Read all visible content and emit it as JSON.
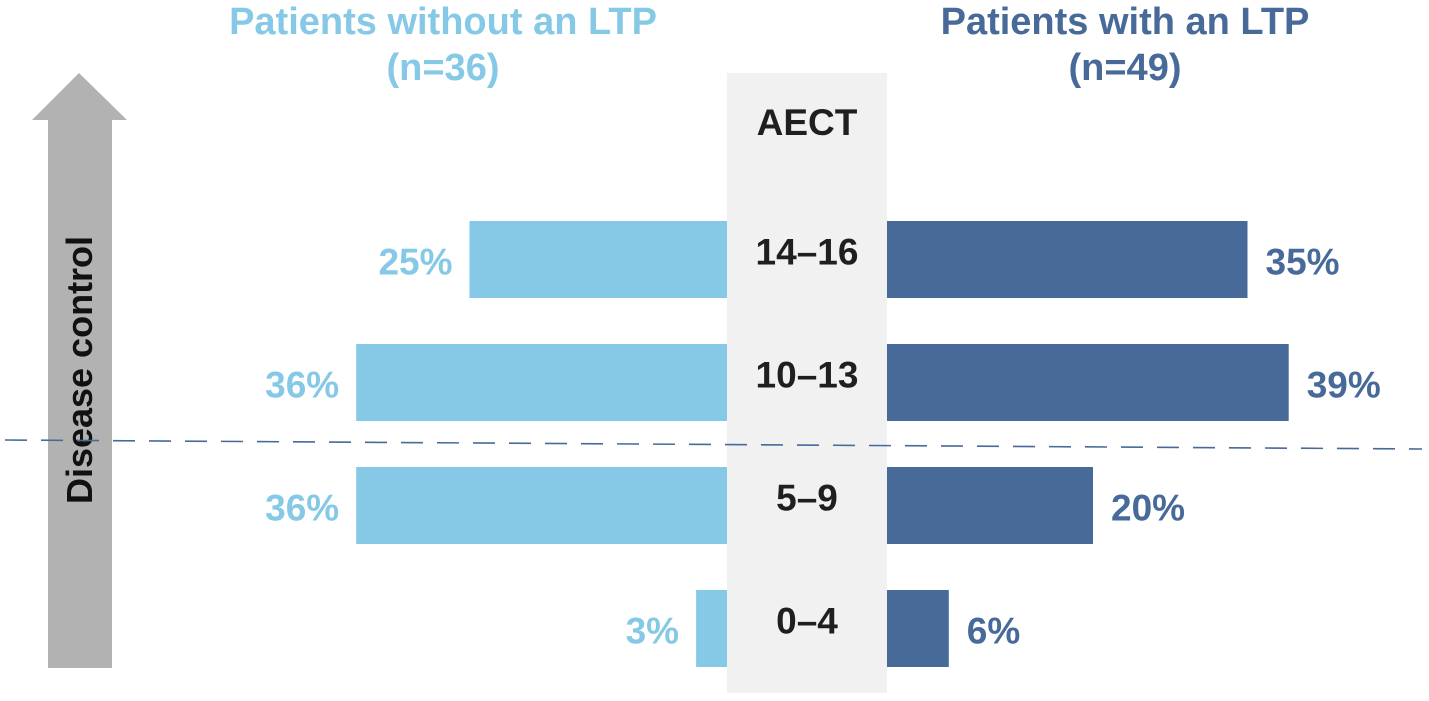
{
  "chart_data": {
    "type": "bar",
    "subtype": "diverging-horizontal",
    "axis_label": "AECT",
    "vertical_label": "Disease control",
    "categories": [
      "14–16",
      "10–13",
      "5–9",
      "0–4"
    ],
    "series": [
      {
        "name": "Patients without an LTP",
        "n_label": "(n=36)",
        "values": [
          25,
          36,
          36,
          3
        ],
        "labels": [
          "25%",
          "36%",
          "36%",
          "3%"
        ],
        "color": "#85C9E6"
      },
      {
        "name": "Patients with an LTP",
        "n_label": "(n=49)",
        "values": [
          35,
          39,
          20,
          6
        ],
        "labels": [
          "35%",
          "39%",
          "20%",
          "6%"
        ],
        "color": "#476A99"
      }
    ],
    "units": "%",
    "threshold_between": [
      "10–13",
      "5–9"
    ]
  },
  "colors": {
    "center_band": "#F1F1F1",
    "arrow": "#B2B2B2",
    "threshold_line": "#476A99"
  }
}
